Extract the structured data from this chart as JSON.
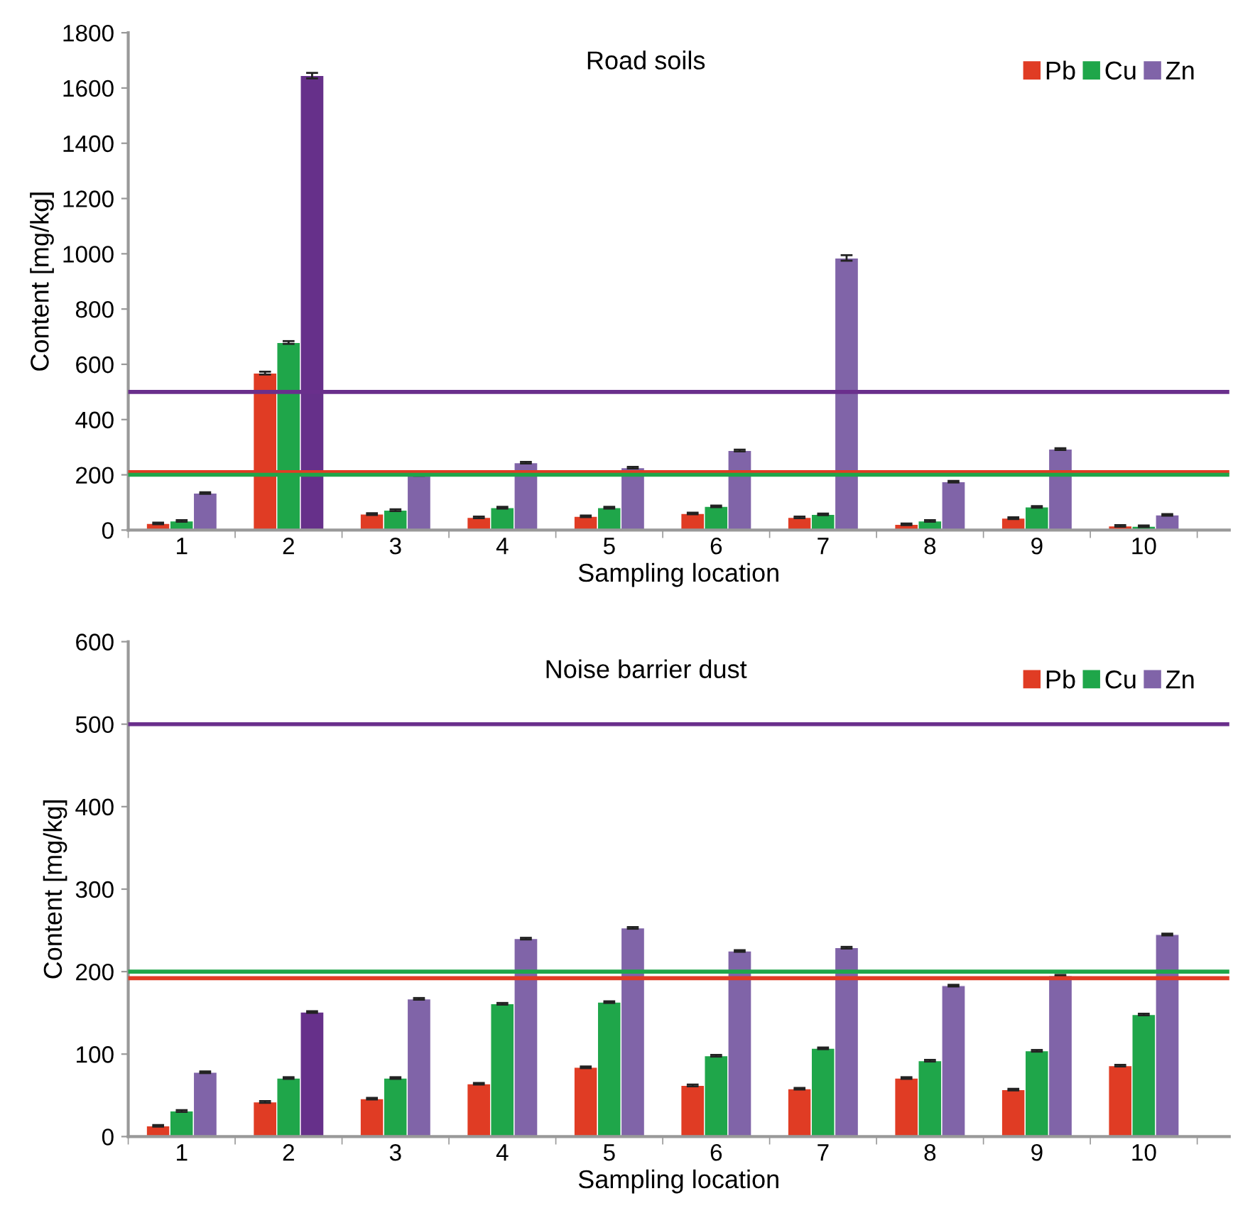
{
  "chart_data": [
    {
      "type": "bar",
      "title": "Road soils",
      "xlabel": "Sampling location",
      "ylabel": "Content [mg/kg]",
      "categories": [
        "1",
        "2",
        "3",
        "4",
        "5",
        "6",
        "7",
        "8",
        "9",
        "10"
      ],
      "series": [
        {
          "name": "Pb",
          "color": "#e03c24",
          "values": [
            24,
            568,
            58,
            46,
            50,
            60,
            46,
            21,
            43,
            15
          ],
          "errors": [
            3,
            5,
            3,
            3,
            3,
            3,
            3,
            3,
            3,
            3
          ]
        },
        {
          "name": "Cu",
          "color": "#1fa64a",
          "values": [
            33,
            679,
            72,
            81,
            81,
            86,
            57,
            33,
            84,
            14
          ],
          "errors": [
            3,
            5,
            3,
            3,
            3,
            3,
            3,
            3,
            3,
            3
          ]
        },
        {
          "name": "Zn",
          "color": "#8064a8",
          "colors": [
            "#8064a8",
            "#66308a",
            "#8064a8",
            "#8064a8",
            "#8064a8",
            "#8064a8",
            "#8064a8",
            "#8064a8",
            "#8064a8",
            "#8064a8"
          ],
          "values": [
            134,
            1645,
            200,
            244,
            226,
            288,
            985,
            175,
            293,
            55
          ],
          "errors": [
            3,
            10,
            3,
            3,
            3,
            3,
            10,
            3,
            3,
            3
          ]
        }
      ],
      "ylim": [
        0,
        1800
      ],
      "yticks": [
        0,
        200,
        400,
        600,
        800,
        1000,
        1200,
        1400,
        1600,
        1800
      ],
      "ref_lines": [
        {
          "axis": "y",
          "value": 500,
          "color": "#6a2f8c"
        },
        {
          "axis": "y",
          "value": 210,
          "color": "#e03c24"
        },
        {
          "axis": "y",
          "value": 200,
          "color": "#1fa64a"
        }
      ],
      "legend": "top right",
      "grid": false
    },
    {
      "type": "bar",
      "title": "Noise barrier dust",
      "xlabel": "Sampling location",
      "ylabel": "Content [mg/kg]",
      "categories": [
        "1",
        "2",
        "3",
        "4",
        "5",
        "6",
        "7",
        "8",
        "9",
        "10"
      ],
      "series": [
        {
          "name": "Pb",
          "color": "#e03c24",
          "values": [
            13,
            42,
            46,
            64,
            84,
            62,
            58,
            71,
            57,
            86
          ],
          "errors": [
            1,
            1,
            1,
            1,
            1,
            1,
            1,
            1,
            1,
            1
          ]
        },
        {
          "name": "Cu",
          "color": "#1fa64a",
          "values": [
            31,
            71,
            71,
            161,
            163,
            98,
            107,
            92,
            104,
            148
          ],
          "errors": [
            1,
            1,
            1,
            1,
            1,
            1,
            1,
            1,
            1,
            1
          ]
        },
        {
          "name": "Zn",
          "color": "#8064a8",
          "colors": [
            "#8064a8",
            "#66308a",
            "#8064a8",
            "#8064a8",
            "#8064a8",
            "#8064a8",
            "#8064a8",
            "#8064a8",
            "#8064a8",
            "#8064a8"
          ],
          "values": [
            78,
            151,
            167,
            240,
            253,
            225,
            229,
            183,
            195,
            245
          ],
          "errors": [
            1,
            1,
            1,
            1,
            1,
            1,
            1,
            1,
            1,
            1
          ]
        }
      ],
      "ylim": [
        0,
        600
      ],
      "yticks": [
        0,
        100,
        200,
        300,
        400,
        500,
        600
      ],
      "ref_lines": [
        {
          "axis": "y",
          "value": 500,
          "color": "#6a2f8c"
        },
        {
          "axis": "y",
          "value": 192,
          "color": "#e03c24"
        },
        {
          "axis": "y",
          "value": 200,
          "color": "#1fa64a"
        }
      ],
      "legend": "top right",
      "grid": false
    }
  ]
}
